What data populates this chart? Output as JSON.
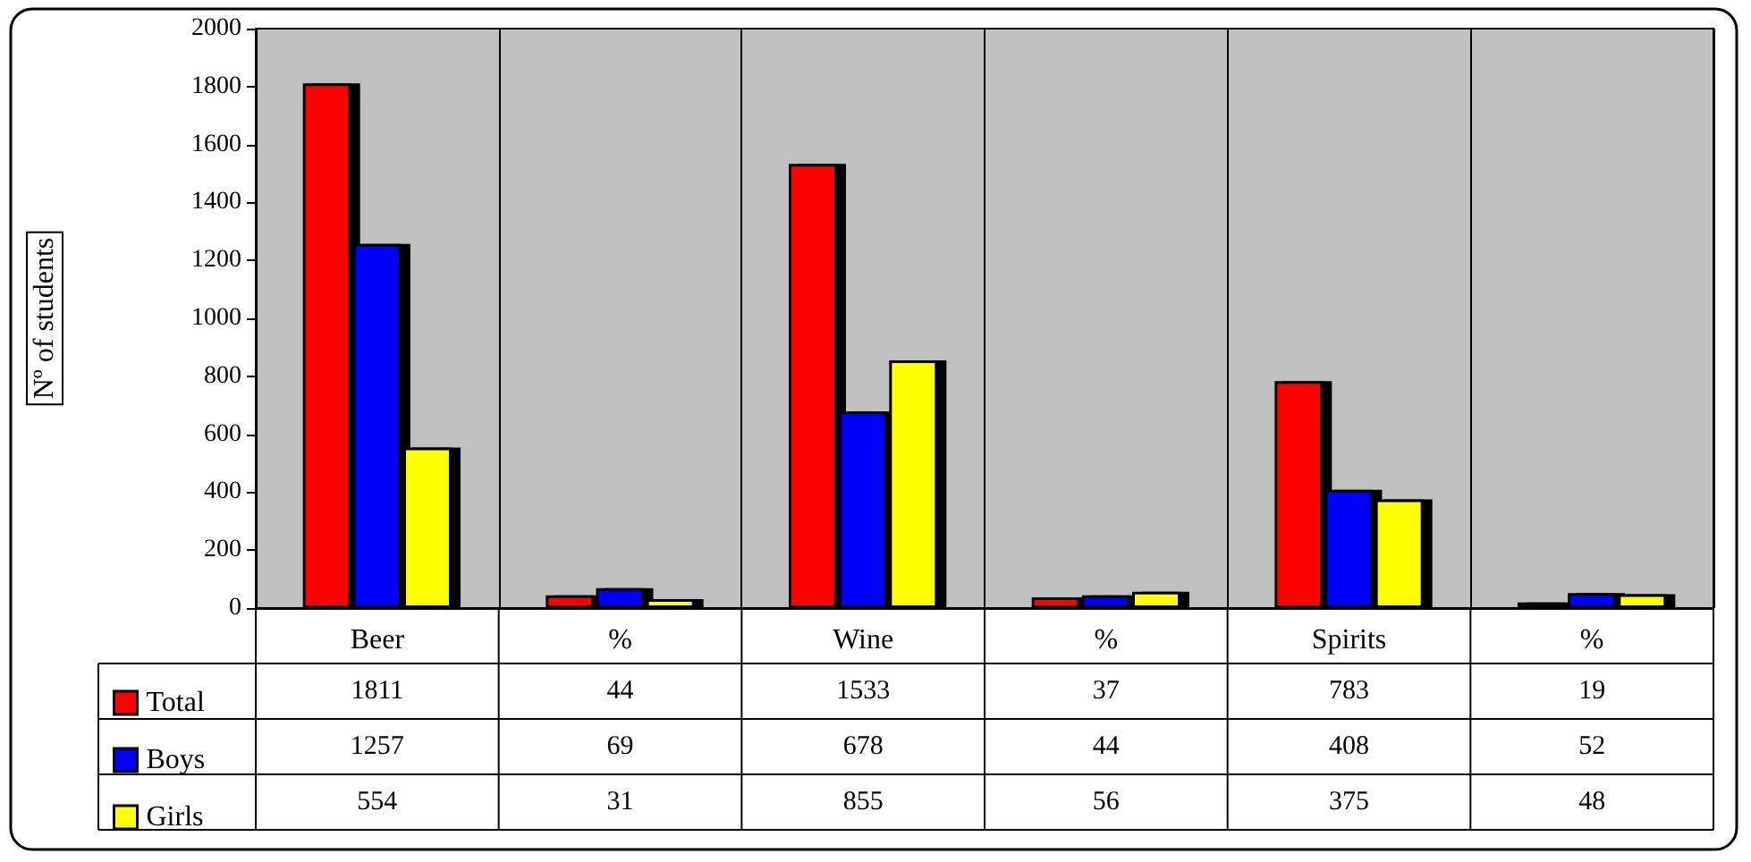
{
  "chart_data": {
    "type": "bar",
    "ylabel": "Nº of students",
    "categories": [
      "Beer",
      "%",
      "Wine",
      "%",
      "Spirits",
      "%"
    ],
    "series": [
      {
        "name": "Total",
        "color": "#ff0000",
        "values": [
          1811,
          44,
          1533,
          37,
          783,
          19
        ]
      },
      {
        "name": "Boys",
        "color": "#0000ff",
        "values": [
          1257,
          69,
          678,
          44,
          408,
          52
        ]
      },
      {
        "name": "Girls",
        "color": "#ffff00",
        "values": [
          554,
          31,
          855,
          56,
          375,
          48
        ]
      }
    ],
    "ylim": [
      0,
      2000
    ],
    "yticks": [
      0,
      200,
      400,
      600,
      800,
      1000,
      1200,
      1400,
      1600,
      1800,
      2000
    ],
    "grid": "x",
    "legend": "bottom left",
    "data_labels": true
  }
}
